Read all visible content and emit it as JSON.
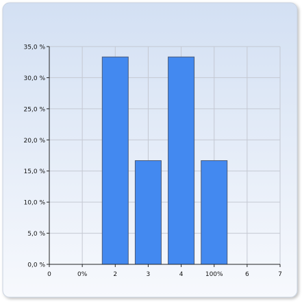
{
  "chart_data": {
    "type": "bar",
    "x_ticks": [
      "0",
      "0%",
      "2",
      "3",
      "4",
      "100%",
      "6",
      "7"
    ],
    "y_ticks": [
      "0,0 %",
      "5,0 %",
      "10,0 %",
      "15,0 %",
      "20,0 %",
      "25,0 %",
      "30,0 %",
      "35,0 %"
    ],
    "ylim": [
      0,
      35
    ],
    "xlim": [
      0,
      7
    ],
    "bars": [
      {
        "x": 2,
        "value": 33.33
      },
      {
        "x": 3,
        "value": 16.67
      },
      {
        "x": 4,
        "value": 33.33
      },
      {
        "x": 5,
        "value": 16.67
      }
    ],
    "grid": true,
    "colors": {
      "bar_fill": "#4389f0",
      "bar_stroke": "#4a5a78",
      "grid": "#c4c8d2",
      "axis": "#222222",
      "panel_top": "#d3e0f3",
      "panel_bottom": "#f7f9fd"
    }
  }
}
